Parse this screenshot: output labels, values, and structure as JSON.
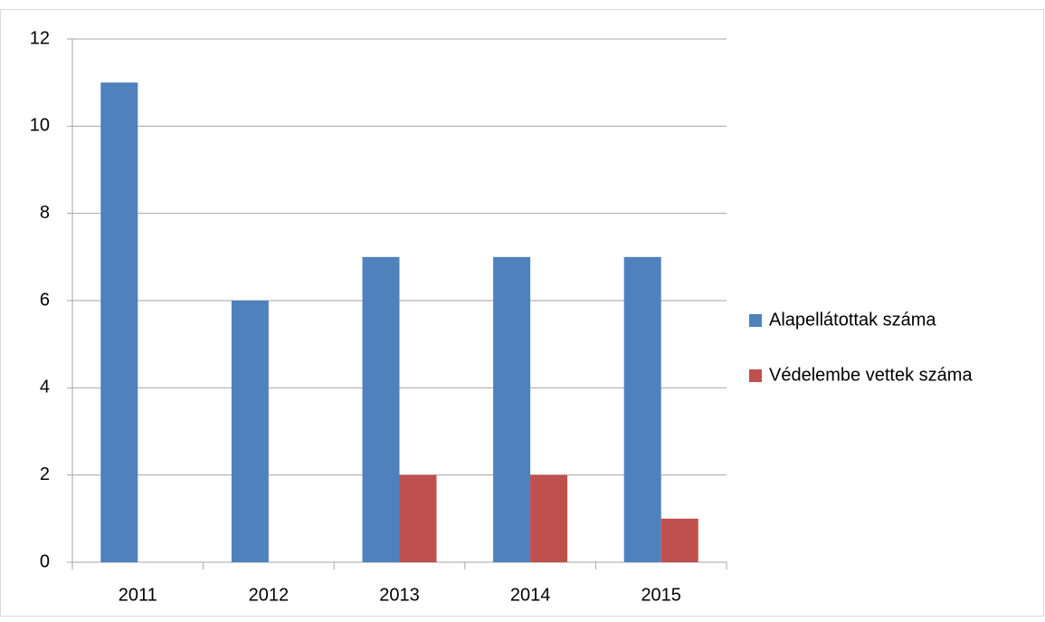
{
  "chart_data": {
    "type": "bar",
    "categories": [
      "2011",
      "2012",
      "2013",
      "2014",
      "2015"
    ],
    "series": [
      {
        "name": "Alapellátottak száma",
        "color": "#4f81bd",
        "values": [
          11,
          6,
          7,
          7,
          7
        ]
      },
      {
        "name": "Védelembe vettek száma",
        "color": "#c0504d",
        "values": [
          0,
          0,
          2,
          2,
          1
        ]
      }
    ],
    "ylim": [
      0,
      12
    ],
    "yticks": [
      0,
      2,
      4,
      6,
      8,
      10,
      12
    ],
    "grid": true,
    "legend": "right"
  }
}
